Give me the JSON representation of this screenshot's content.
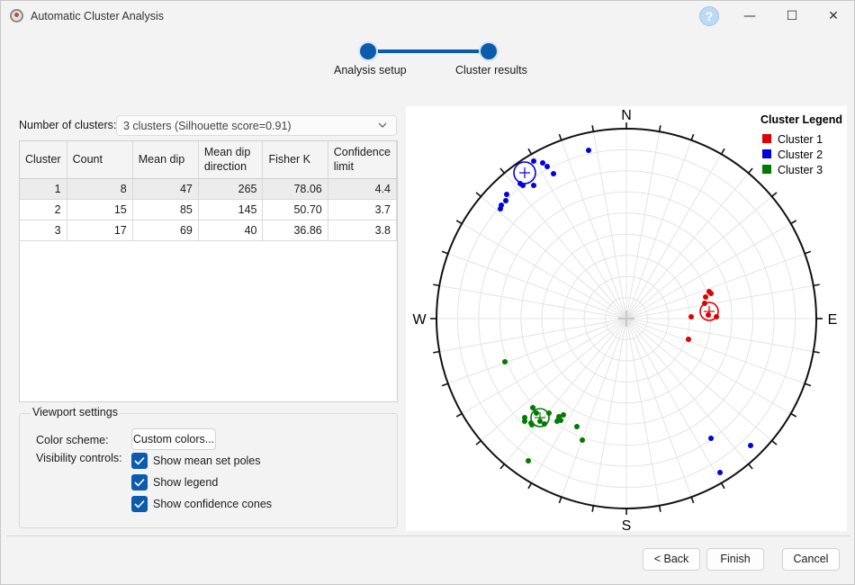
{
  "window": {
    "title": "Automatic Cluster Analysis",
    "help": "?",
    "minimize": "—",
    "maximize": "☐",
    "close": "✕"
  },
  "steps": [
    {
      "label": "Analysis setup"
    },
    {
      "label": "Cluster results"
    }
  ],
  "clusters": {
    "label": "Number of clusters:",
    "value": "3 clusters (Silhouette score=0.91)"
  },
  "table": {
    "headers": [
      "Cluster",
      "Count",
      "Mean dip",
      "Mean dip\ndirection",
      "Fisher K",
      "Confidence\nlimit"
    ],
    "rows": [
      [
        "1",
        "8",
        "47",
        "265",
        "78.06",
        "4.4"
      ],
      [
        "2",
        "15",
        "85",
        "145",
        "50.70",
        "3.7"
      ],
      [
        "3",
        "17",
        "69",
        "40",
        "36.86",
        "3.8"
      ]
    ]
  },
  "viewport": {
    "title": "Viewport settings",
    "color_scheme_label": "Color scheme:",
    "custom_colors_button": "Custom colors...",
    "visibility_label": "Visibility controls:",
    "show_mean_set_poles": "Show mean set poles",
    "show_legend": "Show legend",
    "show_confidence_cones": "Show confidence cones"
  },
  "plot": {
    "north": "N",
    "south": "S",
    "east": "E",
    "west": "W",
    "legend_title": "Cluster Legend",
    "legend": [
      {
        "name": "Cluster 1",
        "color": "#e00000"
      },
      {
        "name": "Cluster 2",
        "color": "#0000e0"
      },
      {
        "name": "Cluster 3",
        "color": "#007a00"
      }
    ]
  },
  "buttons": {
    "back": "< Back",
    "finish": "Finish",
    "cancel": "Cancel"
  },
  "colors": {
    "accent": "#0b5cad",
    "cluster1": "#e00000",
    "cluster2": "#0000e0",
    "cluster3": "#007a00"
  }
}
